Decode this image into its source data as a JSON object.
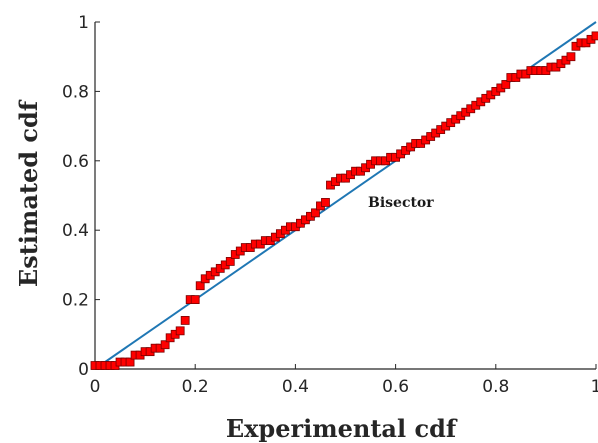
{
  "chart_data": {
    "type": "scatter",
    "title": "",
    "xlabel": "Experimental cdf",
    "ylabel": "Estimated cdf",
    "xlim": [
      0,
      1
    ],
    "ylim": [
      0,
      1
    ],
    "xticks": [
      "0",
      "0.2",
      "0.4",
      "0.6",
      "0.8",
      "1"
    ],
    "yticks": [
      "0",
      "0.2",
      "0.4",
      "0.6",
      "0.8",
      "1"
    ],
    "grid": false,
    "annotations": [
      {
        "text": "Bisector"
      }
    ],
    "colors": {
      "line": "#1f77b4",
      "marker": "#ff0000",
      "marker_edge": "#7a0000",
      "axis": "#262626"
    },
    "line": [
      [
        0,
        0
      ],
      [
        1,
        1
      ]
    ],
    "x": [
      0.0,
      0.01,
      0.02,
      0.03,
      0.04,
      0.05,
      0.06,
      0.07,
      0.08,
      0.09,
      0.1,
      0.11,
      0.12,
      0.13,
      0.14,
      0.15,
      0.16,
      0.17,
      0.18,
      0.19,
      0.2,
      0.21,
      0.22,
      0.23,
      0.24,
      0.25,
      0.26,
      0.27,
      0.28,
      0.29,
      0.3,
      0.31,
      0.32,
      0.33,
      0.34,
      0.35,
      0.36,
      0.37,
      0.38,
      0.39,
      0.4,
      0.41,
      0.42,
      0.43,
      0.44,
      0.45,
      0.46,
      0.47,
      0.48,
      0.49,
      0.5,
      0.51,
      0.52,
      0.53,
      0.54,
      0.55,
      0.56,
      0.57,
      0.58,
      0.59,
      0.6,
      0.61,
      0.62,
      0.63,
      0.64,
      0.65,
      0.66,
      0.67,
      0.68,
      0.69,
      0.7,
      0.71,
      0.72,
      0.73,
      0.74,
      0.75,
      0.76,
      0.77,
      0.78,
      0.79,
      0.8,
      0.81,
      0.82,
      0.83,
      0.84,
      0.85,
      0.86,
      0.87,
      0.88,
      0.89,
      0.9,
      0.91,
      0.92,
      0.93,
      0.94,
      0.95,
      0.96,
      0.97,
      0.98,
      0.99,
      1.0
    ],
    "y": [
      0.01,
      0.01,
      0.01,
      0.01,
      0.01,
      0.02,
      0.02,
      0.02,
      0.04,
      0.04,
      0.05,
      0.05,
      0.06,
      0.06,
      0.07,
      0.09,
      0.1,
      0.11,
      0.14,
      0.2,
      0.2,
      0.24,
      0.26,
      0.27,
      0.28,
      0.29,
      0.3,
      0.31,
      0.33,
      0.34,
      0.35,
      0.35,
      0.36,
      0.36,
      0.37,
      0.37,
      0.38,
      0.39,
      0.4,
      0.41,
      0.41,
      0.42,
      0.43,
      0.44,
      0.45,
      0.47,
      0.48,
      0.53,
      0.54,
      0.55,
      0.55,
      0.56,
      0.57,
      0.57,
      0.58,
      0.59,
      0.6,
      0.6,
      0.6,
      0.61,
      0.61,
      0.62,
      0.63,
      0.64,
      0.65,
      0.65,
      0.66,
      0.67,
      0.68,
      0.69,
      0.7,
      0.71,
      0.72,
      0.73,
      0.74,
      0.75,
      0.76,
      0.77,
      0.78,
      0.79,
      0.8,
      0.81,
      0.82,
      0.84,
      0.84,
      0.85,
      0.85,
      0.86,
      0.86,
      0.86,
      0.86,
      0.87,
      0.87,
      0.88,
      0.89,
      0.9,
      0.93,
      0.94,
      0.94,
      0.95,
      0.96
    ]
  }
}
